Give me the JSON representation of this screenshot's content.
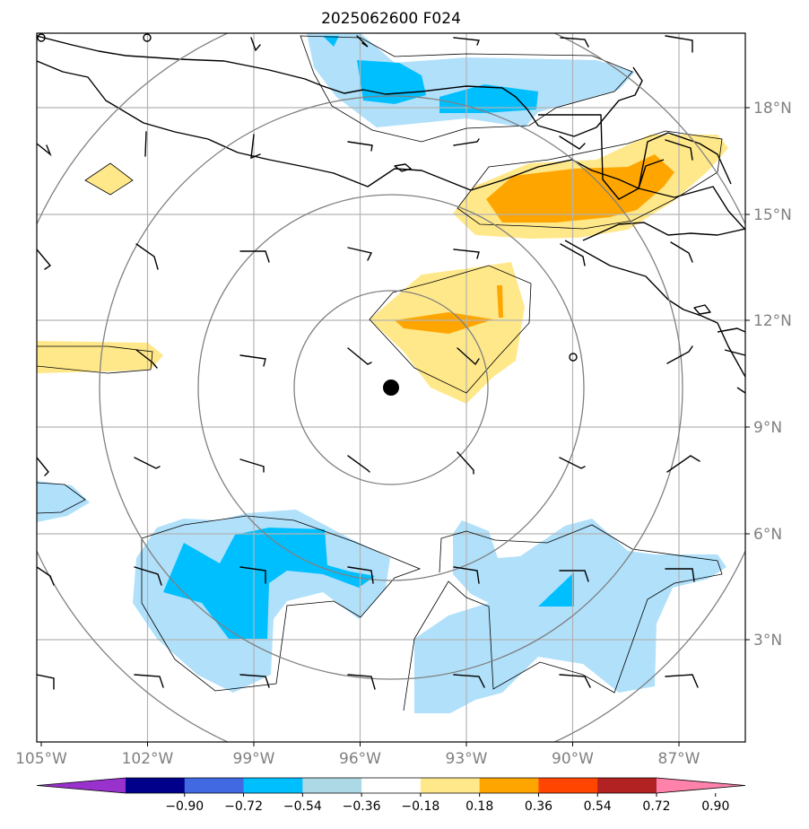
{
  "title": "2025062600 F024",
  "lon_labels": [
    "105°W",
    "102°W",
    "99°W",
    "96°W",
    "93°W",
    "90°W",
    "87°W"
  ],
  "lat_labels": [
    "3°N",
    "6°N",
    "9°N",
    "12°N",
    "15°N",
    "18°N"
  ],
  "colorbar": {
    "tick_labels": [
      "−0.90",
      "−0.72",
      "−0.54",
      "−0.36",
      "−0.18",
      "0.18",
      "0.36",
      "0.54",
      "0.72",
      "0.90"
    ],
    "colors": [
      "#9932cc",
      "#00008b",
      "#4169e1",
      "#00bfff",
      "#add8e6",
      "#ffffff",
      "#ffe88a",
      "#ffa500",
      "#ff4500",
      "#b22222",
      "#ff82ab"
    ]
  },
  "colors": {
    "light_blue": "#b0e0fa",
    "blue": "#00bfff",
    "light_yellow": "#ffe88a",
    "orange": "#ffa500",
    "grid": "#b3b3b3",
    "rings": "#808080",
    "axis_label": "#808080"
  },
  "center_marker": "storm-center-dot"
}
